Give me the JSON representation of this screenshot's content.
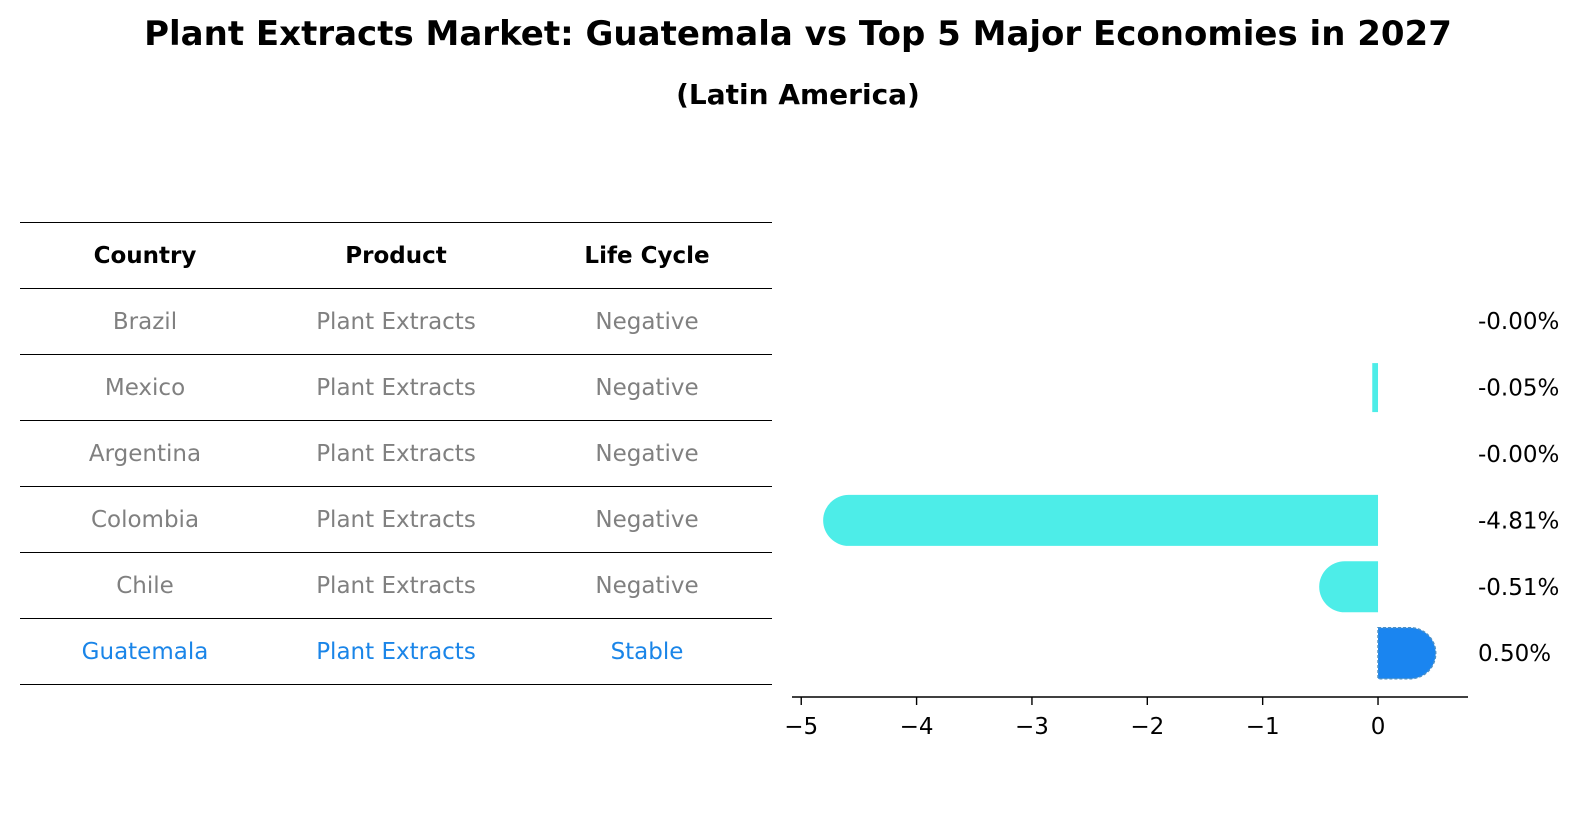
{
  "header": {
    "title": "Plant Extracts Market: Guatemala vs Top 5 Major Economies in 2027",
    "subtitle": "(Latin America)"
  },
  "table": {
    "columns": [
      "Country",
      "Product",
      "Life Cycle"
    ],
    "rows": [
      {
        "country": "Brazil",
        "product": "Plant Extracts",
        "life_cycle": "Negative"
      },
      {
        "country": "Mexico",
        "product": "Plant Extracts",
        "life_cycle": "Negative"
      },
      {
        "country": "Argentina",
        "product": "Plant Extracts",
        "life_cycle": "Negative"
      },
      {
        "country": "Colombia",
        "product": "Plant Extracts",
        "life_cycle": "Negative"
      },
      {
        "country": "Chile",
        "product": "Plant Extracts",
        "life_cycle": "Negative"
      },
      {
        "country": "Guatemala",
        "product": "Plant Extracts",
        "life_cycle": "Stable"
      }
    ],
    "highlight_row": 5
  },
  "colors": {
    "muted_text": "#808080",
    "highlight_text": "#1a85e8",
    "negative_bar": "#4dede8",
    "highlight_bar": "#1a85f0",
    "axis": "#000000"
  },
  "chart_data": {
    "type": "bar",
    "orientation": "horizontal",
    "categories": [
      "Brazil",
      "Mexico",
      "Argentina",
      "Colombia",
      "Chile",
      "Guatemala"
    ],
    "values": [
      -0.0,
      -0.05,
      -0.0,
      -4.81,
      -0.51,
      0.5
    ],
    "value_labels": [
      "-0.00%",
      "-0.05%",
      "-0.00%",
      "-4.81%",
      "-0.51%",
      "0.50%"
    ],
    "xlim": [
      -5.08,
      0.78
    ],
    "xticks": [
      -5,
      -4,
      -3,
      -2,
      -1,
      0
    ],
    "xtick_labels": [
      "−5",
      "−4",
      "−3",
      "−2",
      "−1",
      "0"
    ],
    "highlight_index": 5,
    "grid": false
  }
}
